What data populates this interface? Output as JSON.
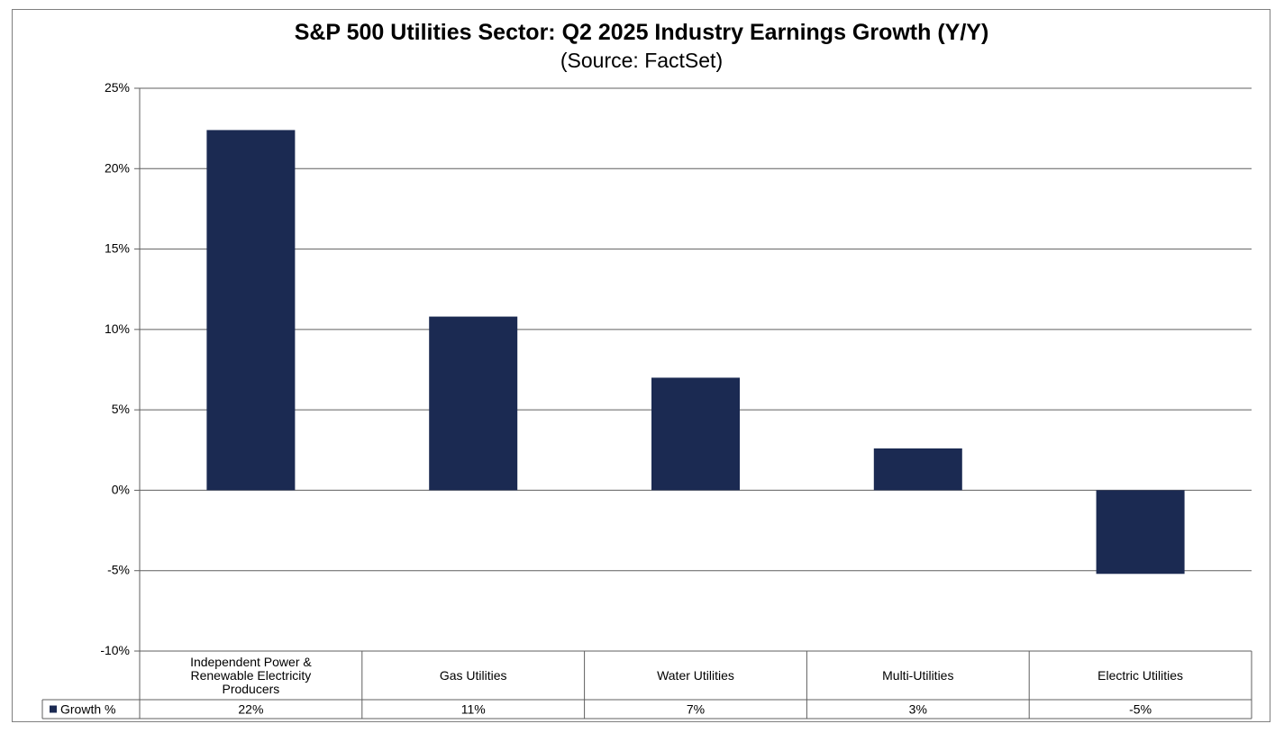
{
  "chart_data": {
    "type": "bar",
    "title": "S&P 500 Utilities  Sector: Q2 2025 Industry Earnings Growth (Y/Y)",
    "subtitle": "(Source: FactSet)",
    "categories": [
      [
        "Independent Power &",
        "Renewable Electricity",
        "Producers"
      ],
      [
        "Gas Utilities"
      ],
      [
        "Water Utilities"
      ],
      [
        "Multi-Utilities"
      ],
      [
        "Electric Utilities"
      ]
    ],
    "series": [
      {
        "name": "Growth %",
        "values": [
          22.4,
          10.8,
          7.0,
          2.6,
          -5.2
        ],
        "labels": [
          "22%",
          "11%",
          "7%",
          "3%",
          "-5%"
        ],
        "color": "#1b2a52"
      }
    ],
    "ylim": [
      -10,
      25
    ],
    "yticks": [
      25,
      20,
      15,
      10,
      5,
      0,
      -5,
      -10
    ],
    "ytick_labels": [
      "25%",
      "20%",
      "15%",
      "10%",
      "5%",
      "0%",
      "-5%",
      "-10%"
    ],
    "grid": true,
    "legend": "data-table"
  }
}
